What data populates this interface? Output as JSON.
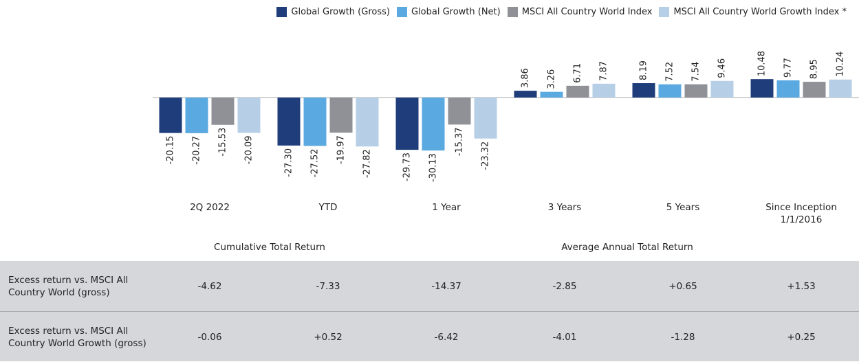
{
  "chart_data": {
    "type": "bar",
    "categories": [
      "2Q 2022",
      "YTD",
      "1 Year",
      "3 Years",
      "5 Years",
      "Since Inception 1/1/2016"
    ],
    "series": [
      {
        "name": "Global Growth (Gross)",
        "color": "#1f3d7a",
        "values": [
          -20.15,
          -27.3,
          -29.73,
          3.86,
          8.19,
          10.48
        ],
        "value_labels": [
          "-20.15",
          "-27.30",
          "-29.73",
          "3.86",
          "8.19",
          "10.48"
        ]
      },
      {
        "name": "Global Growth (Net)",
        "color": "#5aa9e0",
        "values": [
          -20.27,
          -27.52,
          -30.13,
          3.26,
          7.52,
          9.77
        ],
        "value_labels": [
          "-20.27",
          "-27.52",
          "-30.13",
          "3.26",
          "7.52",
          "9.77"
        ]
      },
      {
        "name": "MSCI All Country World Index",
        "color": "#8f9197",
        "values": [
          -15.53,
          -19.97,
          -15.37,
          6.71,
          7.54,
          8.95
        ],
        "value_labels": [
          "-15.53",
          "-19.97",
          "-15.37",
          "6.71",
          "7.54",
          "8.95"
        ]
      },
      {
        "name": "MSCI All Country World Growth Index *",
        "color": "#b7cfe6",
        "values": [
          -20.09,
          -27.82,
          -23.32,
          7.87,
          9.46,
          10.24
        ],
        "value_labels": [
          "-20.09",
          "-27.82",
          "-23.32",
          "7.87",
          "9.46",
          "10.24"
        ]
      }
    ],
    "groups": [
      "Cumulative Total Return",
      "Average Annual Total Return"
    ]
  },
  "table": {
    "rows": [
      {
        "label": "Excess return vs. MSCI All Country World (gross)",
        "values": [
          "-4.62",
          "-7.33",
          "-14.37",
          "-2.85",
          "+0.65",
          "+1.53"
        ]
      },
      {
        "label": "Excess return vs. MSCI All Country World Growth (gross)",
        "values": [
          "-0.06",
          "+0.52",
          "-6.42",
          "-4.01",
          "-1.28",
          "+0.25"
        ]
      }
    ]
  }
}
